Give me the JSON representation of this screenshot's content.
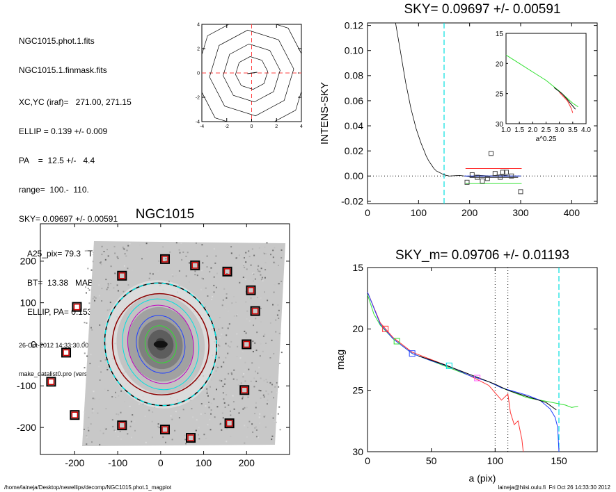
{
  "info": {
    "lines": [
      "NGC1015.phot.1.fits",
      "NGC1015.1.finmask.fits",
      "XC,YC (iraf)=   271.00, 271.15",
      "ELLIP = 0.139 +/- 0.009",
      "PA    =  12.5 +/-   4.4",
      "range=  100.-  110.",
      "SKY= 0.09697 +/- 0.00591"
    ],
    "lines2": [
      "A25_pix= 79.3   T= 1.0  B R",
      "BT=  13.38   MABS=-19.68",
      "ELLIP, PA= 0.153   999.0"
    ],
    "date": "26-Oct-2012 14:33:30.00",
    "program": "make_datalist0.pro (version HS230610)"
  },
  "footer": {
    "left": "/home/laineja/Desktop/newellips/decomp/NGC1015.phot.1_magplot",
    "right": "laineja@hiisi.oulu.fi  Fri Oct 26 14:33:30 2012"
  },
  "colors": {
    "cyan": "#00e0e0",
    "red": "#ff3030",
    "green": "#30e030",
    "blue": "#2040ff",
    "dark_red": "#8b0000",
    "pink": "#ff4040"
  },
  "chart_data": [
    {
      "id": "contour",
      "type": "contour",
      "title": "",
      "xlim": [
        -4,
        4
      ],
      "ylim": [
        -4,
        4
      ],
      "xticks": [
        "-4",
        "-2",
        "0",
        "2",
        "4"
      ],
      "yticks": [
        "-4",
        "-2",
        "0",
        "2",
        "4"
      ],
      "contour_radii": [
        1.3,
        2.3,
        3.4,
        4.6
      ]
    },
    {
      "id": "sky",
      "type": "line",
      "title": "SKY= 0.09697 +/- 0.00591",
      "xlabel": "",
      "ylabel": "INTENS-SKY",
      "xlim": [
        0,
        450
      ],
      "ylim": [
        -0.022,
        0.122
      ],
      "xticks": [
        "0",
        "100",
        "200",
        "300",
        "400"
      ],
      "yticks": [
        "-0.02",
        "0.00",
        "0.02",
        "0.04",
        "0.06",
        "0.08",
        "0.10",
        "0.12"
      ],
      "vline_x": 150,
      "profile": [
        [
          55,
          0.122
        ],
        [
          60,
          0.11
        ],
        [
          65,
          0.098
        ],
        [
          70,
          0.086
        ],
        [
          75,
          0.074
        ],
        [
          80,
          0.064
        ],
        [
          85,
          0.054
        ],
        [
          90,
          0.046
        ],
        [
          95,
          0.038
        ],
        [
          100,
          0.032
        ],
        [
          105,
          0.026
        ],
        [
          110,
          0.021
        ],
        [
          115,
          0.016
        ],
        [
          120,
          0.012
        ],
        [
          125,
          0.009
        ],
        [
          130,
          0.006
        ],
        [
          135,
          0.004
        ],
        [
          140,
          0.003
        ],
        [
          145,
          0.002
        ],
        [
          150,
          0.001
        ],
        [
          160,
          0.0
        ],
        [
          180,
          0.0005
        ],
        [
          200,
          -0.0005
        ],
        [
          220,
          0.0005
        ],
        [
          240,
          0.0
        ],
        [
          260,
          0.001
        ],
        [
          280,
          0.0
        ],
        [
          300,
          0.0
        ]
      ],
      "squares": [
        [
          195,
          -0.005
        ],
        [
          205,
          0.001
        ],
        [
          215,
          -0.001
        ],
        [
          225,
          -0.004
        ],
        [
          235,
          -0.002
        ],
        [
          242,
          0.018
        ],
        [
          250,
          0.002
        ],
        [
          260,
          -0.001
        ],
        [
          265,
          0.003
        ],
        [
          272,
          0.003
        ],
        [
          282,
          0.0
        ],
        [
          300,
          -0.0125
        ]
      ],
      "range_lines": [
        {
          "color": "#ff3030",
          "x0": 192,
          "x1": 302,
          "y": 0.006
        },
        {
          "color": "#30e030",
          "x0": 192,
          "x1": 302,
          "y": -0.006
        },
        {
          "color": "#2040ff",
          "x0": 190,
          "x1": 300,
          "y": 0.0
        },
        {
          "color": "#000000",
          "x0": 200,
          "x1": 295,
          "y": -0.001
        }
      ],
      "inset": {
        "xlim": [
          1.0,
          4.0
        ],
        "ylim": [
          15,
          30
        ],
        "xlabel": "a^0.25",
        "xticks": [
          "1.0",
          "1.5",
          "2.0",
          "2.5",
          "3.0",
          "3.5",
          "4.0"
        ],
        "yticks": [
          "15",
          "20",
          "25",
          "30"
        ],
        "series": [
          {
            "name": "",
            "color": "#30e030",
            "points": [
              [
                1.0,
                18.6
              ],
              [
                1.5,
                20.0
              ],
              [
                2.0,
                21.4
              ],
              [
                2.5,
                22.8
              ],
              [
                3.0,
                24.6
              ],
              [
                3.3,
                25.8
              ],
              [
                3.5,
                26.6
              ],
              [
                3.7,
                27.2
              ]
            ]
          },
          {
            "name": "",
            "color": "#ff3030",
            "points": [
              [
                3.0,
                24.8
              ],
              [
                3.3,
                26.2
              ],
              [
                3.45,
                27.5
              ],
              [
                3.5,
                28.2
              ]
            ]
          },
          {
            "name": "",
            "color": "#000000",
            "points": [
              [
                2.8,
                24.0
              ],
              [
                3.1,
                25.0
              ],
              [
                3.3,
                26.0
              ],
              [
                3.45,
                26.8
              ],
              [
                3.6,
                27.6
              ]
            ]
          }
        ]
      }
    },
    {
      "id": "image",
      "type": "image",
      "title": "NGC1015",
      "xlim": [
        -280,
        300
      ],
      "ylim": [
        -265,
        290
      ],
      "xticks": [
        "-200",
        "-100",
        "0",
        "100",
        "200"
      ],
      "yticks": [
        "-200",
        "-100",
        "0",
        "100",
        "200"
      ],
      "ellipse_outer_r": [
        120,
        148
      ],
      "ellipse_inner_r": [
        100,
        122
      ],
      "ellipse_pa_deg": 12.5,
      "markers": [
        [
          -195,
          90
        ],
        [
          -90,
          165
        ],
        [
          10,
          205
        ],
        [
          80,
          190
        ],
        [
          155,
          175
        ],
        [
          210,
          130
        ],
        [
          220,
          80
        ],
        [
          200,
          0
        ],
        [
          -220,
          -20
        ],
        [
          -255,
          -90
        ],
        [
          -200,
          -170
        ],
        [
          -90,
          -195
        ],
        [
          10,
          -205
        ],
        [
          70,
          -225
        ],
        [
          160,
          -190
        ],
        [
          195,
          -110
        ]
      ]
    },
    {
      "id": "mag",
      "type": "line",
      "title": "SKY_m=  0.09706 +/- 0.01193",
      "xlabel": "a (pix)",
      "ylabel": "mag",
      "xlim": [
        0,
        180
      ],
      "ylim": [
        15,
        30
      ],
      "xticks": [
        "0",
        "50",
        "100",
        "150"
      ],
      "yticks": [
        "15",
        "20",
        "25",
        "30"
      ],
      "vlines_dotted": [
        100,
        110
      ],
      "vline_dashed": 150,
      "series": [
        {
          "name": "",
          "color": "#30e030",
          "points": [
            [
              0,
              17.2
            ],
            [
              5,
              18.8
            ],
            [
              10,
              19.7
            ],
            [
              20,
              20.8
            ],
            [
              35,
              22.0
            ],
            [
              50,
              22.6
            ],
            [
              65,
              23.2
            ],
            [
              80,
              23.8
            ],
            [
              95,
              24.3
            ],
            [
              105,
              24.8
            ],
            [
              115,
              25.2
            ],
            [
              125,
              25.6
            ],
            [
              135,
              25.8
            ],
            [
              145,
              26.0
            ],
            [
              155,
              26.2
            ],
            [
              160,
              26.4
            ],
            [
              165,
              26.3
            ]
          ]
        },
        {
          "name": "",
          "color": "#ff3030",
          "points": [
            [
              0,
              17.0
            ],
            [
              10,
              19.5
            ],
            [
              20,
              20.7
            ],
            [
              35,
              21.9
            ],
            [
              50,
              22.5
            ],
            [
              65,
              23.1
            ],
            [
              80,
              23.8
            ],
            [
              95,
              24.6
            ],
            [
              100,
              25.2
            ],
            [
              105,
              25.8
            ],
            [
              110,
              25.3
            ],
            [
              112,
              26.8
            ],
            [
              115,
              27.8
            ],
            [
              118,
              27.5
            ],
            [
              121,
              29.0
            ],
            [
              122,
              30.0
            ]
          ]
        },
        {
          "name": "",
          "color": "#2040ff",
          "points": [
            [
              0,
              17.0
            ],
            [
              10,
              19.6
            ],
            [
              20,
              20.8
            ],
            [
              35,
              22.0
            ],
            [
              50,
              22.6
            ],
            [
              65,
              23.1
            ],
            [
              80,
              23.8
            ],
            [
              95,
              24.3
            ],
            [
              105,
              24.8
            ],
            [
              115,
              25.1
            ],
            [
              125,
              25.4
            ],
            [
              135,
              25.8
            ],
            [
              143,
              26.5
            ],
            [
              147,
              27.2
            ],
            [
              149,
              28.0
            ],
            [
              150,
              30.0
            ]
          ]
        },
        {
          "name": "",
          "color": "#000000",
          "points": [
            [
              40,
              22.2
            ],
            [
              60,
              22.9
            ],
            [
              80,
              23.7
            ],
            [
              100,
              24.5
            ],
            [
              110,
              25.0
            ],
            [
              125,
              25.5
            ],
            [
              140,
              26.0
            ],
            [
              148,
              26.6
            ]
          ]
        }
      ],
      "squares": [
        {
          "color": "#ff3030",
          "x": 14,
          "y": 20.0
        },
        {
          "color": "#30e030",
          "x": 23,
          "y": 21.0
        },
        {
          "color": "#2040ff",
          "x": 35,
          "y": 22.0
        },
        {
          "color": "#00e0e0",
          "x": 64,
          "y": 23.0
        },
        {
          "color": "#ff60ff",
          "x": 86,
          "y": 24.0
        }
      ]
    }
  ]
}
